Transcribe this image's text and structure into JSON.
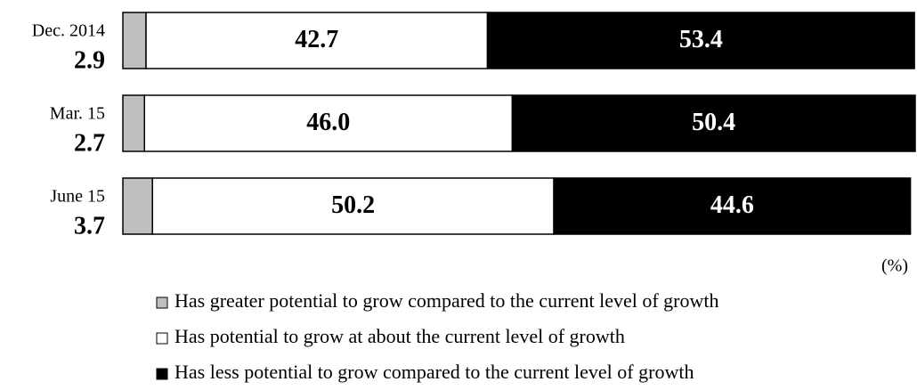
{
  "chart_data": {
    "type": "stacked-bar-horizontal",
    "categories": [
      "Dec. 2014",
      "Mar. 15",
      "June 15"
    ],
    "series": [
      {
        "name": "Has greater potential to grow compared to the current level of growth",
        "color": "#bfbfbf",
        "values": [
          2.9,
          2.7,
          3.7
        ],
        "value_labels": [
          "2.9",
          "2.7",
          "3.7"
        ]
      },
      {
        "name": "Has potential to grow at about the current level of growth",
        "color": "#ffffff",
        "values": [
          42.7,
          46.0,
          50.2
        ],
        "value_labels": [
          "42.7",
          "46.0",
          "50.2"
        ]
      },
      {
        "name": "Has less potential to grow compared to the current level of growth",
        "color": "#000000",
        "values": [
          53.4,
          50.4,
          44.6
        ],
        "value_labels": [
          "53.4",
          "50.4",
          "44.6"
        ]
      }
    ],
    "unit_label": "(%)"
  }
}
